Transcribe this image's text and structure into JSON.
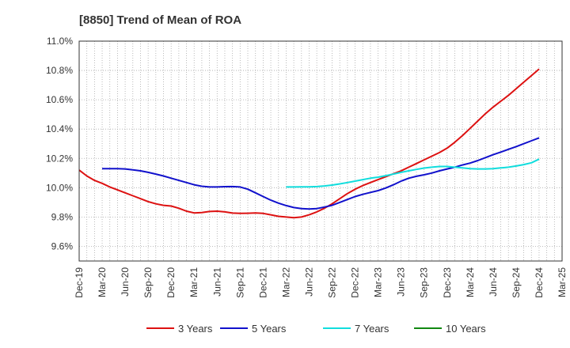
{
  "chart_data": {
    "type": "line",
    "title": "[8850]  Trend of Mean of ROA",
    "xlabel": "",
    "ylabel": "",
    "y_ticks": [
      "11.0%",
      "10.8%",
      "10.6%",
      "10.4%",
      "10.2%",
      "10.0%",
      "9.8%",
      "9.6%"
    ],
    "y_tick_values": [
      11.0,
      10.8,
      10.6,
      10.4,
      10.2,
      10.0,
      9.8,
      9.6
    ],
    "ylim": [
      9.5,
      11.0
    ],
    "x_ticks": [
      "Dec-19",
      "Mar-20",
      "Jun-20",
      "Sep-20",
      "Dec-20",
      "Mar-21",
      "Jun-21",
      "Sep-21",
      "Dec-21",
      "Mar-22",
      "Jun-22",
      "Sep-22",
      "Dec-22",
      "Mar-23",
      "Jun-23",
      "Sep-23",
      "Dec-23",
      "Mar-24",
      "Jun-24",
      "Sep-24",
      "Dec-24",
      "Mar-25"
    ],
    "grid": true,
    "legend_position": "bottom",
    "series": [
      {
        "name": "3 Years",
        "color": "#dd1111",
        "points": [
          [
            "Dec-19",
            10.12
          ],
          [
            "Jan-20",
            10.08
          ],
          [
            "Feb-20",
            10.05
          ],
          [
            "Mar-20",
            10.03
          ],
          [
            "Apr-20",
            10.005
          ],
          [
            "May-20",
            9.985
          ],
          [
            "Jun-20",
            9.965
          ],
          [
            "Jul-20",
            9.945
          ],
          [
            "Aug-20",
            9.925
          ],
          [
            "Sep-20",
            9.905
          ],
          [
            "Oct-20",
            9.89
          ],
          [
            "Nov-20",
            9.88
          ],
          [
            "Dec-20",
            9.875
          ],
          [
            "Jan-21",
            9.86
          ],
          [
            "Feb-21",
            9.84
          ],
          [
            "Mar-21",
            9.828
          ],
          [
            "Apr-21",
            9.83
          ],
          [
            "May-21",
            9.838
          ],
          [
            "Jun-21",
            9.84
          ],
          [
            "Jul-21",
            9.835
          ],
          [
            "Aug-21",
            9.827
          ],
          [
            "Sep-21",
            9.825
          ],
          [
            "Oct-21",
            9.826
          ],
          [
            "Nov-21",
            9.828
          ],
          [
            "Dec-21",
            9.825
          ],
          [
            "Jan-22",
            9.815
          ],
          [
            "Feb-22",
            9.805
          ],
          [
            "Mar-22",
            9.8
          ],
          [
            "Apr-22",
            9.795
          ],
          [
            "May-22",
            9.8
          ],
          [
            "Jun-22",
            9.815
          ],
          [
            "Jul-22",
            9.835
          ],
          [
            "Aug-22",
            9.86
          ],
          [
            "Sep-22",
            9.89
          ],
          [
            "Oct-22",
            9.925
          ],
          [
            "Nov-22",
            9.96
          ],
          [
            "Dec-22",
            9.99
          ],
          [
            "Jan-23",
            10.015
          ],
          [
            "Feb-23",
            10.035
          ],
          [
            "Mar-23",
            10.055
          ],
          [
            "Apr-23",
            10.075
          ],
          [
            "May-23",
            10.095
          ],
          [
            "Jun-23",
            10.115
          ],
          [
            "Jul-23",
            10.14
          ],
          [
            "Aug-23",
            10.165
          ],
          [
            "Sep-23",
            10.19
          ],
          [
            "Oct-23",
            10.215
          ],
          [
            "Nov-23",
            10.24
          ],
          [
            "Dec-23",
            10.27
          ],
          [
            "Jan-24",
            10.31
          ],
          [
            "Feb-24",
            10.355
          ],
          [
            "Mar-24",
            10.405
          ],
          [
            "Apr-24",
            10.455
          ],
          [
            "May-24",
            10.505
          ],
          [
            "Jun-24",
            10.55
          ],
          [
            "Jul-24",
            10.59
          ],
          [
            "Aug-24",
            10.63
          ],
          [
            "Sep-24",
            10.675
          ],
          [
            "Oct-24",
            10.72
          ],
          [
            "Nov-24",
            10.765
          ],
          [
            "Dec-24",
            10.81
          ]
        ]
      },
      {
        "name": "5 Years",
        "color": "#1111cc",
        "points": [
          [
            "Dec-19",
            null
          ],
          [
            "Jan-20",
            null
          ],
          [
            "Feb-20",
            null
          ],
          [
            "Mar-20",
            10.13
          ],
          [
            "Apr-20",
            10.13
          ],
          [
            "May-20",
            10.13
          ],
          [
            "Jun-20",
            10.128
          ],
          [
            "Jul-20",
            10.122
          ],
          [
            "Aug-20",
            10.115
          ],
          [
            "Sep-20",
            10.105
          ],
          [
            "Oct-20",
            10.093
          ],
          [
            "Nov-20",
            10.08
          ],
          [
            "Dec-20",
            10.065
          ],
          [
            "Jan-21",
            10.05
          ],
          [
            "Feb-21",
            10.035
          ],
          [
            "Mar-21",
            10.02
          ],
          [
            "Apr-21",
            10.01
          ],
          [
            "May-21",
            10.005
          ],
          [
            "Jun-21",
            10.005
          ],
          [
            "Jul-21",
            10.007
          ],
          [
            "Aug-21",
            10.008
          ],
          [
            "Sep-21",
            10.005
          ],
          [
            "Oct-21",
            9.99
          ],
          [
            "Nov-21",
            9.965
          ],
          [
            "Dec-21",
            9.94
          ],
          [
            "Jan-22",
            9.915
          ],
          [
            "Feb-22",
            9.895
          ],
          [
            "Mar-22",
            9.878
          ],
          [
            "Apr-22",
            9.865
          ],
          [
            "May-22",
            9.857
          ],
          [
            "Jun-22",
            9.855
          ],
          [
            "Jul-22",
            9.858
          ],
          [
            "Aug-22",
            9.868
          ],
          [
            "Sep-22",
            9.88
          ],
          [
            "Oct-22",
            9.9
          ],
          [
            "Nov-22",
            9.92
          ],
          [
            "Dec-22",
            9.94
          ],
          [
            "Jan-23",
            9.955
          ],
          [
            "Feb-23",
            9.968
          ],
          [
            "Mar-23",
            9.98
          ],
          [
            "Apr-23",
            9.998
          ],
          [
            "May-23",
            10.02
          ],
          [
            "Jun-23",
            10.045
          ],
          [
            "Jul-23",
            10.065
          ],
          [
            "Aug-23",
            10.078
          ],
          [
            "Sep-23",
            10.088
          ],
          [
            "Oct-23",
            10.1
          ],
          [
            "Nov-23",
            10.115
          ],
          [
            "Dec-23",
            10.128
          ],
          [
            "Jan-24",
            10.14
          ],
          [
            "Feb-24",
            10.155
          ],
          [
            "Mar-24",
            10.168
          ],
          [
            "Apr-24",
            10.185
          ],
          [
            "May-24",
            10.205
          ],
          [
            "Jun-24",
            10.225
          ],
          [
            "Jul-24",
            10.243
          ],
          [
            "Aug-24",
            10.262
          ],
          [
            "Sep-24",
            10.28
          ],
          [
            "Oct-24",
            10.3
          ],
          [
            "Nov-24",
            10.32
          ],
          [
            "Dec-24",
            10.34
          ]
        ]
      },
      {
        "name": "7 Years",
        "color": "#11dddd",
        "points": [
          [
            "Mar-22",
            10.005
          ],
          [
            "Apr-22",
            10.005
          ],
          [
            "May-22",
            10.006
          ],
          [
            "Jun-22",
            10.006
          ],
          [
            "Jul-22",
            10.008
          ],
          [
            "Aug-22",
            10.012
          ],
          [
            "Sep-22",
            10.018
          ],
          [
            "Oct-22",
            10.026
          ],
          [
            "Nov-22",
            10.035
          ],
          [
            "Dec-22",
            10.045
          ],
          [
            "Jan-23",
            10.055
          ],
          [
            "Feb-23",
            10.065
          ],
          [
            "Mar-23",
            10.072
          ],
          [
            "Apr-23",
            10.082
          ],
          [
            "May-23",
            10.093
          ],
          [
            "Jun-23",
            10.105
          ],
          [
            "Jul-23",
            10.115
          ],
          [
            "Aug-23",
            10.125
          ],
          [
            "Sep-23",
            10.134
          ],
          [
            "Oct-23",
            10.14
          ],
          [
            "Nov-23",
            10.145
          ],
          [
            "Dec-23",
            10.145
          ],
          [
            "Jan-24",
            10.14
          ],
          [
            "Feb-24",
            10.135
          ],
          [
            "Mar-24",
            10.13
          ],
          [
            "Apr-24",
            10.128
          ],
          [
            "May-24",
            10.128
          ],
          [
            "Jun-24",
            10.13
          ],
          [
            "Jul-24",
            10.135
          ],
          [
            "Aug-24",
            10.14
          ],
          [
            "Sep-24",
            10.148
          ],
          [
            "Oct-24",
            10.158
          ],
          [
            "Nov-24",
            10.17
          ],
          [
            "Dec-24",
            10.195
          ]
        ]
      },
      {
        "name": "10 Years",
        "color": "#118811",
        "points": []
      }
    ]
  }
}
